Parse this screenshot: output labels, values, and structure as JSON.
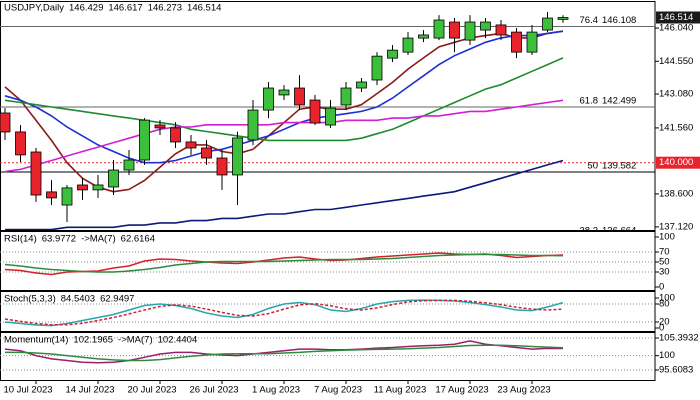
{
  "chart_data": [
    {
      "type": "candlestick",
      "title": "USDJPY,Daily",
      "categories": [
        null,
        null,
        "10 Jul 2023",
        null,
        null,
        null,
        "14 Jul 2023",
        null,
        null,
        null,
        "20 Jul 2023",
        null,
        null,
        null,
        "26 Jul 2023",
        null,
        null,
        null,
        "1 Aug 2023",
        null,
        null,
        null,
        "7 Aug 2023",
        null,
        null,
        null,
        "11 Aug 2023",
        null,
        null,
        null,
        "17 Aug 2023",
        null,
        null,
        null,
        "23 Aug 2023",
        null,
        null
      ],
      "open": [
        142.23,
        141.38,
        140.48,
        138.69,
        138.1,
        139.0,
        138.78,
        138.91,
        139.67,
        140.12,
        141.69,
        141.56,
        140.93,
        140.66,
        140.21,
        139.45,
        141.02,
        142.36,
        143.04,
        143.35,
        142.81,
        141.69,
        142.59,
        143.35,
        143.71,
        144.69,
        144.96,
        145.59,
        145.59,
        146.31,
        145.5,
        145.95,
        146.18,
        145.86,
        144.96,
        145.95,
        146.429
      ],
      "high": [
        142.45,
        141.69,
        140.66,
        139.22,
        139.0,
        139.31,
        139.45,
        140.12,
        140.57,
        142.0,
        141.91,
        141.82,
        141.24,
        141.02,
        140.57,
        141.38,
        142.81,
        143.62,
        143.48,
        143.93,
        143.04,
        142.81,
        143.62,
        143.8,
        144.96,
        145.28,
        145.86,
        145.95,
        146.62,
        146.49,
        146.62,
        146.49,
        146.4,
        146.04,
        146.18,
        146.76,
        146.617
      ],
      "low": [
        141.02,
        140.03,
        138.24,
        138.1,
        137.34,
        138.33,
        138.42,
        138.55,
        139.45,
        139.9,
        141.24,
        140.66,
        140.35,
        139.9,
        138.78,
        138.1,
        140.79,
        142.0,
        142.81,
        142.36,
        141.69,
        141.56,
        142.36,
        143.17,
        143.48,
        144.52,
        144.83,
        145.41,
        145.5,
        144.96,
        145.28,
        145.59,
        145.5,
        144.69,
        144.83,
        145.86,
        146.273
      ],
      "close": [
        141.38,
        140.35,
        138.55,
        138.42,
        138.87,
        138.78,
        139.0,
        139.67,
        140.12,
        141.91,
        141.56,
        140.93,
        140.66,
        140.21,
        139.45,
        141.11,
        142.36,
        143.35,
        143.26,
        142.59,
        141.78,
        142.45,
        143.35,
        143.62,
        144.78,
        145.05,
        145.59,
        145.73,
        146.4,
        145.59,
        146.31,
        146.31,
        145.73,
        144.96,
        145.86,
        146.49,
        146.514
      ],
      "up_color": "#3cc03c",
      "down_color": "#e8232c",
      "overlays": [
        {
          "color": "#8b1a1a",
          "values": [
            143.4,
            142.8,
            141.9,
            141.0,
            140.0,
            139.3,
            138.9,
            138.7,
            138.8,
            139.2,
            139.8,
            140.4,
            140.8,
            140.8,
            140.5,
            140.4,
            140.6,
            141.2,
            141.8,
            142.4,
            142.5,
            142.4,
            142.4,
            142.6,
            143.1,
            143.6,
            144.2,
            144.7,
            145.2,
            145.4,
            145.6,
            145.7,
            145.8,
            145.6,
            145.6,
            145.8,
            145.9
          ]
        },
        {
          "color": "#1c2fd6",
          "values": [
            143.0,
            142.8,
            142.5,
            142.1,
            141.6,
            141.2,
            140.8,
            140.5,
            140.2,
            140.0,
            140.0,
            140.1,
            140.3,
            140.5,
            140.6,
            140.8,
            141.0,
            141.2,
            141.5,
            141.8,
            142.0,
            142.1,
            142.2,
            142.3,
            142.5,
            142.9,
            143.4,
            143.9,
            144.4,
            144.8,
            145.1,
            145.4,
            145.6,
            145.7,
            145.7,
            145.8,
            145.9
          ]
        },
        {
          "color": "#1e8c2e",
          "values": [
            142.8,
            142.7,
            142.6,
            142.5,
            142.4,
            142.3,
            142.2,
            142.1,
            142.0,
            141.9,
            141.8,
            141.7,
            141.5,
            141.4,
            141.3,
            141.2,
            141.1,
            141.0,
            141.0,
            141.0,
            141.0,
            141.0,
            141.0,
            141.1,
            141.3,
            141.5,
            141.8,
            142.1,
            142.4,
            142.7,
            143.0,
            143.3,
            143.5,
            143.8,
            144.1,
            144.4,
            144.7
          ]
        },
        {
          "color": "#d21fd2",
          "values": [
            139.6,
            139.7,
            139.9,
            140.1,
            140.3,
            140.5,
            140.7,
            140.9,
            141.1,
            141.3,
            141.5,
            141.6,
            141.6,
            141.7,
            141.7,
            141.7,
            141.7,
            141.7,
            141.8,
            141.8,
            141.8,
            141.8,
            141.9,
            141.9,
            141.9,
            142.0,
            142.0,
            142.1,
            142.1,
            142.2,
            142.3,
            142.3,
            142.4,
            142.5,
            142.6,
            142.7,
            142.8
          ]
        },
        {
          "color": "#0b1a7a",
          "values": [
            137.0,
            137.0,
            137.0,
            137.0,
            137.1,
            137.1,
            137.1,
            137.1,
            137.2,
            137.2,
            137.3,
            137.3,
            137.4,
            137.4,
            137.5,
            137.5,
            137.6,
            137.7,
            137.7,
            137.8,
            137.9,
            137.9,
            138.0,
            138.1,
            138.2,
            138.3,
            138.4,
            138.5,
            138.6,
            138.7,
            138.9,
            139.1,
            139.3,
            139.5,
            139.7,
            139.9,
            140.1
          ]
        }
      ],
      "ylim": [
        137.07,
        146.94
      ],
      "yticks": [
        {
          "value": 146.04,
          "label": "146.040"
        },
        {
          "value": 144.55,
          "label": "144.550"
        },
        {
          "value": 143.08,
          "label": "143.080"
        },
        {
          "value": 141.56,
          "label": "141.560"
        },
        {
          "value": 138.6,
          "label": "138.600"
        },
        {
          "value": 137.12,
          "label": "137.120"
        }
      ],
      "price_line": {
        "value": 140,
        "label": "140.000",
        "color": "#e8232c"
      },
      "fib_levels": [
        {
          "ratio": 76.4,
          "price": 146.108
        },
        {
          "ratio": 61.8,
          "price": 142.499
        },
        {
          "ratio": 50.0,
          "price": 139.582
        },
        {
          "ratio": 38.2,
          "price": 136.664
        }
      ]
    },
    {
      "type": "line",
      "series": [
        {
          "name": "RSI(14)",
          "color": "#d4202a",
          "values": [
            35,
            33,
            28,
            25,
            30,
            31,
            32,
            38,
            42,
            52,
            56,
            55,
            52,
            50,
            48,
            47,
            50,
            54,
            58,
            60,
            56,
            53,
            54,
            57,
            60,
            62,
            64,
            66,
            68,
            66,
            65,
            66,
            63,
            59,
            61,
            63,
            63.9772
          ]
        },
        {
          "name": "->MA(7)",
          "color": "#2e8b3e",
          "values": [
            45,
            42,
            38,
            35,
            33,
            31,
            30,
            30,
            32,
            35,
            39,
            44,
            47,
            50,
            51,
            51,
            51,
            51,
            52,
            53,
            54,
            55,
            55,
            55,
            56,
            57,
            59,
            61,
            63,
            64,
            65,
            65,
            65,
            64,
            63,
            63,
            62.6164
          ]
        }
      ],
      "ylim": [
        0,
        100
      ],
      "yticks": [
        100,
        70,
        50,
        30,
        0
      ]
    },
    {
      "type": "line",
      "title": "Stoch(5,3,3)",
      "series": [
        {
          "color": "#27a6b0",
          "values": [
            20,
            15,
            10,
            8,
            15,
            25,
            35,
            45,
            60,
            75,
            80,
            75,
            65,
            50,
            40,
            35,
            45,
            65,
            80,
            85,
            78,
            60,
            55,
            65,
            80,
            88,
            92,
            93,
            92,
            90,
            85,
            78,
            70,
            60,
            58,
            70,
            84.5403
          ]
        },
        {
          "color": "#d4202a",
          "dashed": true,
          "values": [
            30,
            22,
            15,
            11,
            11,
            16,
            25,
            35,
            47,
            60,
            72,
            77,
            73,
            63,
            52,
            42,
            40,
            48,
            63,
            77,
            81,
            74,
            64,
            60,
            67,
            78,
            87,
            91,
            92,
            92,
            89,
            84,
            78,
            69,
            63,
            60,
            62.9497
          ]
        }
      ],
      "ylim": [
        0,
        100
      ],
      "yticks": [
        100,
        80,
        20,
        0
      ]
    },
    {
      "type": "line",
      "series": [
        {
          "name": "Momentum(14)",
          "color": "#9a1f6a",
          "values": [
            102,
            101.5,
            100,
            99,
            98.5,
            98,
            97.8,
            98,
            98.5,
            99.5,
            100.5,
            101,
            101,
            100.5,
            100.2,
            100,
            100.5,
            101,
            101.5,
            102,
            102,
            101.8,
            101.8,
            102,
            102.3,
            102.5,
            102.8,
            103,
            103.2,
            103.5,
            104.5,
            103.5,
            103,
            102.5,
            102,
            102.2,
            102.1965
          ]
        },
        {
          "name": "->MA(7)",
          "color": "#2e8b3e",
          "values": [
            101,
            101,
            100.8,
            100.5,
            100,
            99.5,
            99,
            98.7,
            98.5,
            98.5,
            98.8,
            99.3,
            99.8,
            100.2,
            100.5,
            100.6,
            100.6,
            100.6,
            100.8,
            101,
            101.3,
            101.5,
            101.7,
            101.8,
            101.9,
            102,
            102.1,
            102.3,
            102.5,
            102.8,
            103.1,
            103.2,
            103.2,
            103,
            102.8,
            102.6,
            102.4404
          ]
        }
      ],
      "ylim": [
        92.55,
        107.23
      ],
      "yticks": [
        105.3932,
        100,
        95.6083
      ]
    }
  ]
}
